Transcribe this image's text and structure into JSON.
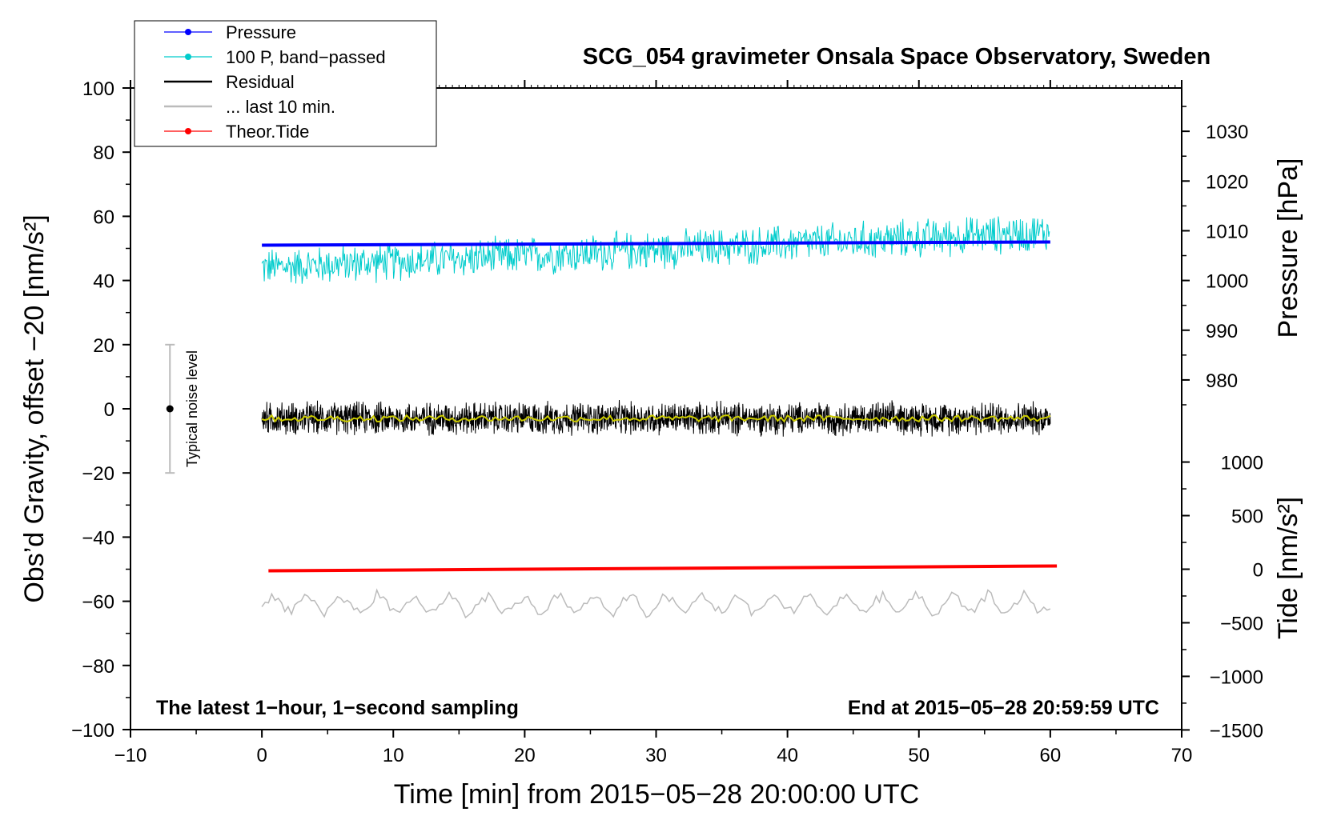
{
  "chart_data": {
    "type": "line",
    "title": "SCG_054 gravimeter Onsala Space Observatory, Sweden",
    "xlabel": "Time [min] from 2015−05−28 20:00:00 UTC",
    "ylabel_left": "Obs’d Gravity, offset −20 [nm/s²]",
    "ylabel_right_pressure": "Pressure [hPa]",
    "ylabel_right_tide": "Tide [nm/s²]",
    "xlim": [
      -10,
      70
    ],
    "ylim": [
      -100,
      100
    ],
    "x_ticks": [
      "−10",
      "0",
      "10",
      "20",
      "30",
      "40",
      "50",
      "60",
      "70"
    ],
    "y_ticks_left": [
      "−100",
      "−80",
      "−60",
      "−40",
      "−20",
      "0",
      "20",
      "40",
      "60",
      "80",
      "100"
    ],
    "pressure_axis": {
      "ticks": [
        "980",
        "990",
        "1000",
        "1010",
        "1020",
        "1030"
      ]
    },
    "tide_axis": {
      "ticks": [
        "−1500",
        "−1000",
        "−500",
        "0",
        "500",
        "1000"
      ]
    },
    "annotations": {
      "bottom_left": "The latest 1−hour, 1−second sampling",
      "bottom_right": "End at 2015−05−28 20:59:59 UTC",
      "noise": "Typical noise level"
    },
    "noise_bar": {
      "x": -7,
      "center": 0,
      "low": -20,
      "high": 20
    },
    "legend": [
      {
        "label": "Pressure",
        "color": "#0000ff",
        "marker": true
      },
      {
        "label": "100 P, band−passed",
        "color": "#00cccc",
        "marker": true
      },
      {
        "label": "Residual",
        "color": "#000000",
        "marker": false
      },
      {
        "label": "... last 10 min.",
        "color": "#bbbbbb",
        "marker": false
      },
      {
        "label": "Theor.Tide",
        "color": "#ff0000",
        "marker": true
      }
    ],
    "series": [
      {
        "name": "Pressure",
        "color": "#0000ff",
        "x_range": [
          0,
          60
        ],
        "y_start": 51,
        "y_end": 52,
        "style": "thick"
      },
      {
        "name": "100 P, band−passed",
        "color": "#00cccc",
        "x_range": [
          0,
          60
        ],
        "y_start": 44,
        "y_end": 55,
        "amplitude": 5
      },
      {
        "name": "Residual",
        "color": "#000000",
        "x_range": [
          0,
          60
        ],
        "y_mean": -3,
        "amplitude": 4
      },
      {
        "name": "Residual smoothed",
        "color": "#cccc00",
        "x_range": [
          0,
          60
        ],
        "y_mean": -3,
        "amplitude": 1
      },
      {
        "name": "Theor.Tide",
        "color": "#ff0000",
        "x_range": [
          0.5,
          60.5
        ],
        "y_start": -50.5,
        "y_end": -49,
        "style": "thick"
      },
      {
        "name": "... last 10 min.",
        "color": "#bbbbbb",
        "x_range": [
          0,
          60
        ],
        "y_mean": -61,
        "amplitude": 3
      }
    ]
  }
}
